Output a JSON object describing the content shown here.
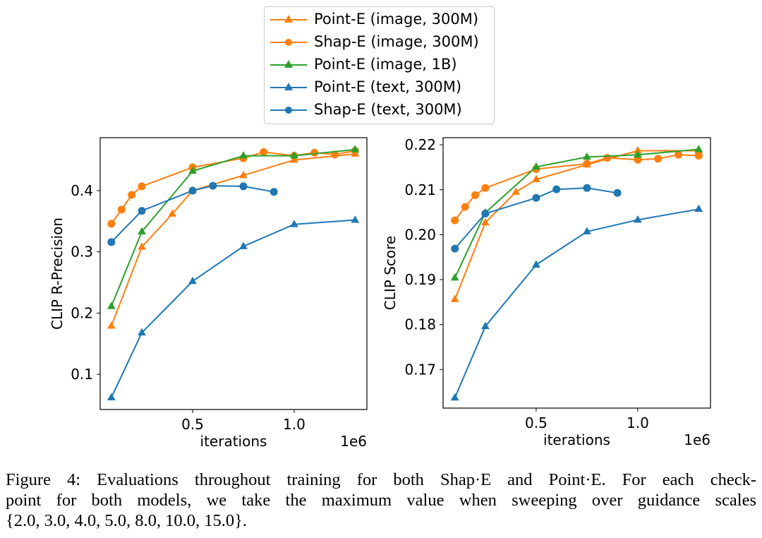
{
  "legend": {
    "entries": [
      {
        "label": "Point-E (image, 300M)",
        "color": "#ff7f0e",
        "marker": "triangle"
      },
      {
        "label": "Shap-E (image, 300M)",
        "color": "#ff7f0e",
        "marker": "circle"
      },
      {
        "label": "Point-E (image, 1B)",
        "color": "#2ca02c",
        "marker": "triangle"
      },
      {
        "label": "Point-E (text, 300M)",
        "color": "#1f77b4",
        "marker": "triangle"
      },
      {
        "label": "Shap-E (text, 300M)",
        "color": "#1f77b4",
        "marker": "circle"
      }
    ],
    "placement": "top-center"
  },
  "chart_data": [
    {
      "type": "line",
      "title": "",
      "xlabel": "iterations",
      "ylabel": "CLIP R-Precision",
      "x_offset_label": "1e6",
      "xlim": [
        0.045,
        1.358
      ],
      "ylim": [
        0.0425,
        0.4865
      ],
      "xticks": [
        0.5,
        1.0
      ],
      "xtick_labels": [
        "0.5",
        "1.0"
      ],
      "yticks": [
        0.1,
        0.2,
        0.3,
        0.4
      ],
      "ytick_labels": [
        "0.1",
        "0.2",
        "0.3",
        "0.4"
      ],
      "grid": false,
      "series": [
        {
          "name": "Point-E (image, 300M)",
          "color": "#ff7f0e",
          "marker": "triangle",
          "x": [
            0.1,
            0.25,
            0.4,
            0.5,
            0.75,
            1.0,
            1.3
          ],
          "y": [
            0.179,
            0.308,
            0.362,
            0.4,
            0.425,
            0.45,
            0.46
          ]
        },
        {
          "name": "Shap-E (image, 300M)",
          "color": "#ff7f0e",
          "marker": "circle",
          "x": [
            0.1,
            0.15,
            0.2,
            0.25,
            0.5,
            0.75,
            0.85,
            1.0,
            1.1,
            1.2,
            1.3
          ],
          "y": [
            0.346,
            0.369,
            0.393,
            0.407,
            0.438,
            0.453,
            0.463,
            0.457,
            0.462,
            0.459,
            0.465
          ]
        },
        {
          "name": "Point-E (image, 1B)",
          "color": "#2ca02c",
          "marker": "triangle",
          "x": [
            0.1,
            0.25,
            0.5,
            0.75,
            1.0,
            1.3
          ],
          "y": [
            0.211,
            0.333,
            0.432,
            0.457,
            0.457,
            0.467
          ]
        },
        {
          "name": "Point-E (text, 300M)",
          "color": "#1f77b4",
          "marker": "triangle",
          "x": [
            0.1,
            0.25,
            0.5,
            0.75,
            1.0,
            1.3
          ],
          "y": [
            0.062,
            0.168,
            0.252,
            0.309,
            0.345,
            0.352
          ]
        },
        {
          "name": "Shap-E (text, 300M)",
          "color": "#1f77b4",
          "marker": "circle",
          "x": [
            0.1,
            0.25,
            0.5,
            0.6,
            0.75,
            0.9
          ],
          "y": [
            0.316,
            0.367,
            0.4,
            0.408,
            0.407,
            0.398
          ]
        }
      ]
    },
    {
      "type": "line",
      "title": "",
      "xlabel": "iterations",
      "ylabel": "CLIP Score",
      "x_offset_label": "1e6",
      "xlim": [
        0.042,
        1.358
      ],
      "ylim": [
        0.1614,
        0.2216
      ],
      "xticks": [
        0.5,
        1.0
      ],
      "xtick_labels": [
        "0.5",
        "1.0"
      ],
      "yticks": [
        0.17,
        0.18,
        0.19,
        0.2,
        0.21,
        0.22
      ],
      "ytick_labels": [
        "0.17",
        "0.18",
        "0.19",
        "0.20",
        "0.21",
        "0.22"
      ],
      "grid": false,
      "series": [
        {
          "name": "Point-E (image, 300M)",
          "color": "#ff7f0e",
          "marker": "triangle",
          "x": [
            0.1,
            0.25,
            0.4,
            0.5,
            0.75,
            1.0,
            1.3
          ],
          "y": [
            0.1856,
            0.2027,
            0.2095,
            0.2123,
            0.2156,
            0.2187,
            0.2187
          ]
        },
        {
          "name": "Shap-E (image, 300M)",
          "color": "#ff7f0e",
          "marker": "circle",
          "x": [
            0.1,
            0.15,
            0.2,
            0.25,
            0.5,
            0.75,
            0.85,
            1.0,
            1.1,
            1.2,
            1.3
          ],
          "y": [
            0.2032,
            0.2062,
            0.2088,
            0.2104,
            0.2146,
            0.2158,
            0.2171,
            0.2167,
            0.2169,
            0.2178,
            0.2176
          ]
        },
        {
          "name": "Point-E (image, 1B)",
          "color": "#2ca02c",
          "marker": "triangle",
          "x": [
            0.1,
            0.25,
            0.5,
            0.75,
            1.0,
            1.3
          ],
          "y": [
            0.1904,
            0.2049,
            0.2151,
            0.2173,
            0.2178,
            0.219
          ]
        },
        {
          "name": "Point-E (text, 300M)",
          "color": "#1f77b4",
          "marker": "triangle",
          "x": [
            0.1,
            0.25,
            0.5,
            0.75,
            1.0,
            1.3
          ],
          "y": [
            0.1637,
            0.1796,
            0.1933,
            0.2007,
            0.2033,
            0.2057
          ]
        },
        {
          "name": "Shap-E (text, 300M)",
          "color": "#1f77b4",
          "marker": "circle",
          "x": [
            0.1,
            0.25,
            0.5,
            0.6,
            0.75,
            0.9
          ],
          "y": [
            0.1969,
            0.2047,
            0.2082,
            0.2101,
            0.2104,
            0.2093
          ]
        }
      ]
    }
  ],
  "caption": {
    "lines": [
      "Figure 4:  Evaluations throughout training for both Shap·E and Point·E. For each check-",
      "point for both models, we take the maximum value when sweeping over guidance scales",
      "{2.0, 3.0, 4.0, 5.0, 8.0, 10.0, 15.0}."
    ]
  }
}
